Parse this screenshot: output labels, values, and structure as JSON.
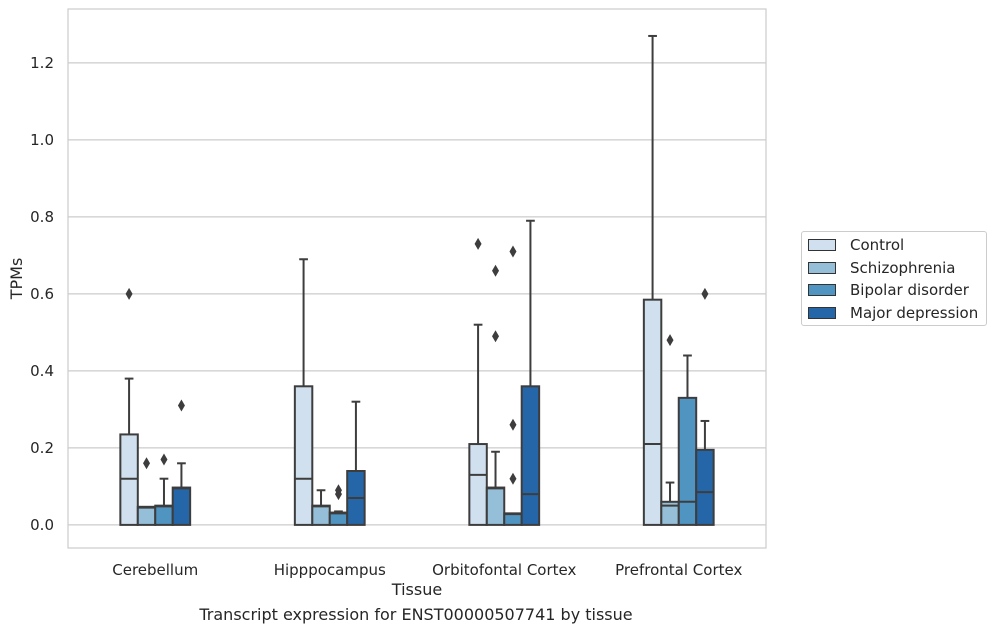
{
  "chart_data": {
    "type": "box",
    "xlabel": "Tissue",
    "ylabel": "TPMs",
    "caption": "Transcript expression for ENST00000507741 by tissue",
    "ylim": [
      -0.06,
      1.34
    ],
    "yticks": [
      0.0,
      0.2,
      0.4,
      0.6,
      0.8,
      1.0,
      1.2
    ],
    "ytick_labels": [
      "0.0",
      "0.2",
      "0.4",
      "0.6",
      "0.8",
      "1.0",
      "1.2"
    ],
    "grid": "horizontal",
    "legend_position": "right",
    "categories": [
      "Cerebellum",
      "Hipppocampus",
      "Orbitofontal Cortex",
      "Prefrontal Cortex"
    ],
    "series": [
      {
        "name": "Control",
        "color": "#d1e0ef",
        "boxes": [
          {
            "q1": 0.0,
            "median": 0.12,
            "q3": 0.235,
            "whisker_low": 0.0,
            "whisker_high": 0.38,
            "outliers": [
              0.6
            ]
          },
          {
            "q1": 0.0,
            "median": 0.12,
            "q3": 0.36,
            "whisker_low": 0.0,
            "whisker_high": 0.69,
            "outliers": []
          },
          {
            "q1": 0.0,
            "median": 0.13,
            "q3": 0.21,
            "whisker_low": 0.0,
            "whisker_high": 0.52,
            "outliers": [
              0.73
            ]
          },
          {
            "q1": 0.0,
            "median": 0.21,
            "q3": 0.585,
            "whisker_low": 0.0,
            "whisker_high": 1.27,
            "outliers": []
          }
        ]
      },
      {
        "name": "Schizophrenia",
        "color": "#95bfd9",
        "boxes": [
          {
            "q1": 0.0,
            "median": 0.045,
            "q3": 0.047,
            "whisker_low": 0.0,
            "whisker_high": 0.047,
            "outliers": [
              0.16
            ]
          },
          {
            "q1": 0.0,
            "median": 0.048,
            "q3": 0.05,
            "whisker_low": 0.0,
            "whisker_high": 0.09,
            "outliers": []
          },
          {
            "q1": 0.0,
            "median": 0.095,
            "q3": 0.097,
            "whisker_low": 0.0,
            "whisker_high": 0.19,
            "outliers": [
              0.66,
              0.49
            ]
          },
          {
            "q1": 0.0,
            "median": 0.05,
            "q3": 0.06,
            "whisker_low": 0.0,
            "whisker_high": 0.11,
            "outliers": [
              0.48
            ]
          }
        ]
      },
      {
        "name": "Bipolar disorder",
        "color": "#5094c2",
        "boxes": [
          {
            "q1": 0.0,
            "median": 0.048,
            "q3": 0.05,
            "whisker_low": 0.0,
            "whisker_high": 0.12,
            "outliers": [
              0.17
            ]
          },
          {
            "q1": 0.0,
            "median": 0.03,
            "q3": 0.032,
            "whisker_low": 0.0,
            "whisker_high": 0.035,
            "outliers": [
              0.09,
              0.08
            ]
          },
          {
            "q1": 0.0,
            "median": 0.028,
            "q3": 0.03,
            "whisker_low": 0.0,
            "whisker_high": 0.03,
            "outliers": [
              0.71,
              0.26,
              0.12
            ]
          },
          {
            "q1": 0.0,
            "median": 0.06,
            "q3": 0.33,
            "whisker_low": 0.0,
            "whisker_high": 0.44,
            "outliers": []
          }
        ]
      },
      {
        "name": "Major depression",
        "color": "#2466a8",
        "boxes": [
          {
            "q1": 0.0,
            "median": 0.095,
            "q3": 0.097,
            "whisker_low": 0.0,
            "whisker_high": 0.16,
            "outliers": [
              0.31
            ]
          },
          {
            "q1": 0.0,
            "median": 0.07,
            "q3": 0.14,
            "whisker_low": 0.0,
            "whisker_high": 0.32,
            "outliers": []
          },
          {
            "q1": 0.0,
            "median": 0.08,
            "q3": 0.36,
            "whisker_low": 0.0,
            "whisker_high": 0.79,
            "outliers": []
          },
          {
            "q1": 0.0,
            "median": 0.085,
            "q3": 0.195,
            "whisker_low": 0.0,
            "whisker_high": 0.27,
            "outliers": [
              0.6
            ]
          }
        ]
      }
    ]
  }
}
